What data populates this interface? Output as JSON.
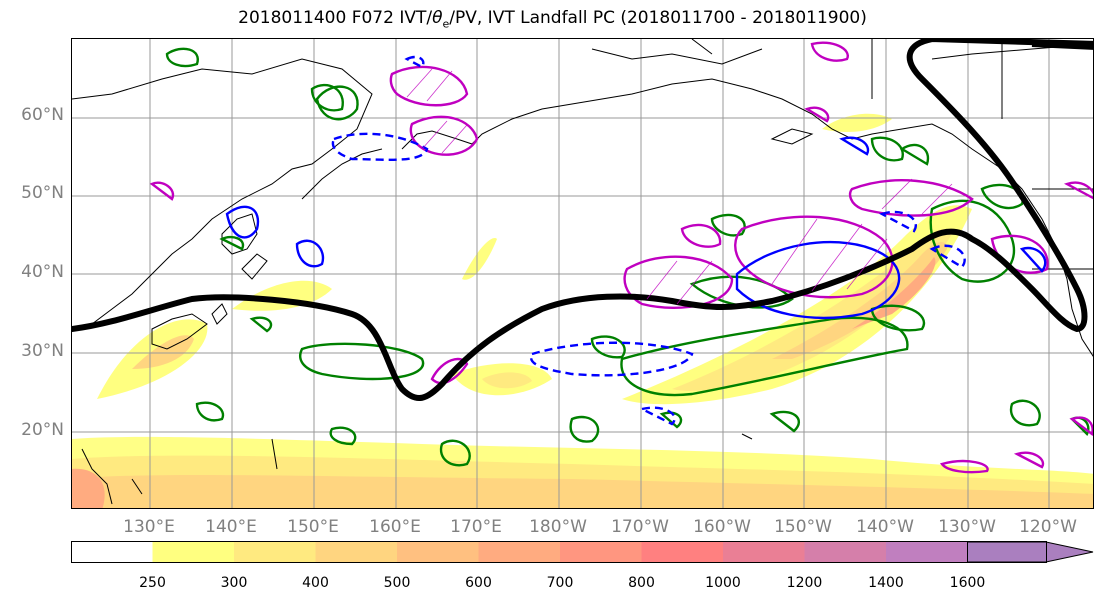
{
  "title": "2018011400 F072 IVT/θe/PV, IVT Landfall PC (2018011700 - 2018011900)",
  "title_parts": {
    "prefix": "2018011400 F072 IVT/",
    "theta": "θ",
    "sub": "e",
    "suffix": "/PV, IVT Landfall PC (2018011700 - 2018011900)"
  },
  "lat_labels": [
    "60°N",
    "50°N",
    "40°N",
    "30°N",
    "20°N"
  ],
  "lon_labels": [
    "130°E",
    "140°E",
    "150°E",
    "160°E",
    "170°E",
    "180°W",
    "170°W",
    "160°W",
    "150°W",
    "140°W",
    "130°W",
    "120°W"
  ],
  "colorbar": {
    "ticks": [
      "250",
      "300",
      "400",
      "500",
      "600",
      "700",
      "800",
      "1000",
      "1200",
      "1400",
      "1600"
    ],
    "colors": [
      "#ffffff",
      "#ffff80",
      "#ffea80",
      "#ffd580",
      "#ffc080",
      "#ffab80",
      "#ff9680",
      "#ff8080",
      "#ea7f95",
      "#d57faa",
      "#c07fbf",
      "#aa7fbf"
    ]
  },
  "legend_colors": {
    "pv_contour": "#0000ff",
    "theta_e": "#008000",
    "magenta_contour": "#c000c0",
    "landfall_pc": "#000000"
  }
}
